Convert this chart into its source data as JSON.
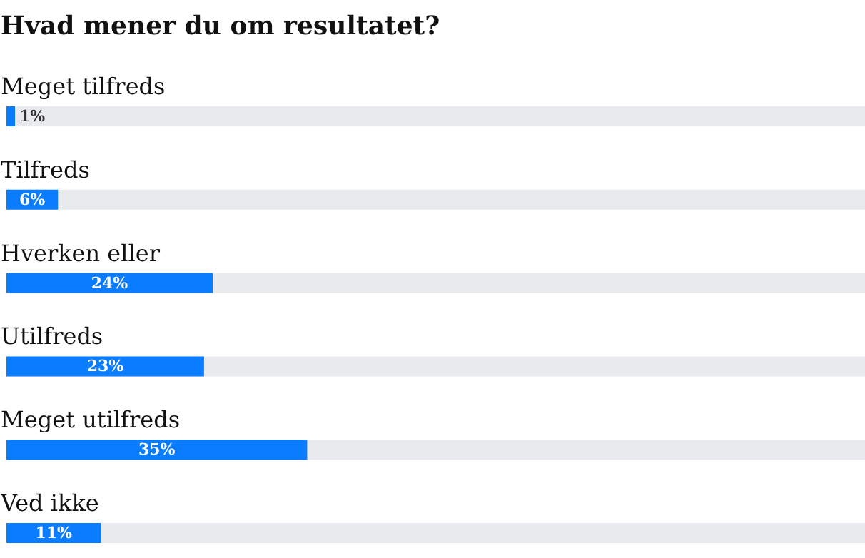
{
  "chart_data": {
    "type": "bar",
    "orientation": "horizontal",
    "title": "Hvad mener du om resultatet?",
    "categories": [
      "Meget tilfreds",
      "Tilfreds",
      "Hverken eller",
      "Utilfreds",
      "Meget utilfreds",
      "Ved ikke"
    ],
    "values": [
      1,
      6,
      24,
      23,
      35,
      11
    ],
    "value_labels": [
      "1%",
      "6%",
      "24%",
      "23%",
      "35%",
      "11%"
    ],
    "color": "#0a7cff",
    "xlim": [
      0,
      100
    ],
    "tick_labels": false,
    "grid": false
  }
}
